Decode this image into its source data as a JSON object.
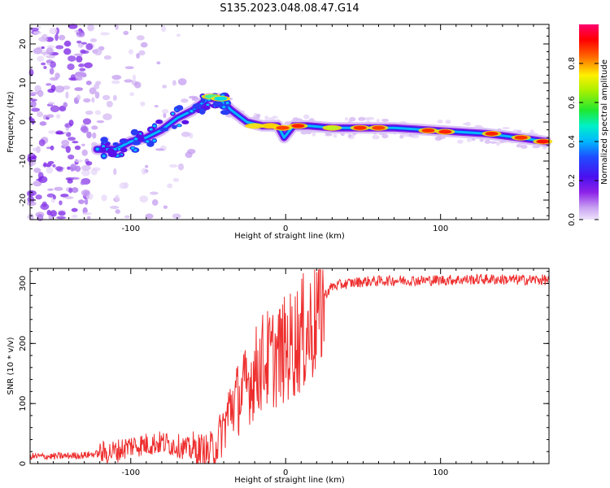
{
  "figure": {
    "title": "S135.2023.048.08.47.G14"
  },
  "chart_data": [
    {
      "type": "heatmap",
      "xlabel": "Height of straight line (km)",
      "ylabel": "Frequency (Hz)",
      "xlim": [
        -165,
        170
      ],
      "ylim": [
        -25,
        25
      ],
      "xticks": [
        "-100",
        "0",
        "100"
      ],
      "xtick_values": [
        -100,
        0,
        100
      ],
      "yticks": [
        "-20",
        "-10",
        "0",
        "10",
        "20"
      ],
      "ytick_values": [
        -20,
        -10,
        0,
        10,
        20
      ],
      "colorbar": {
        "label": "Normalized spectral amplitude",
        "range": [
          0,
          1
        ],
        "ticks": [
          "0.0",
          "0.2",
          "0.4",
          "0.6",
          "0.8"
        ],
        "tick_values": [
          0,
          0.2,
          0.4,
          0.6,
          0.8
        ],
        "colormap": "rainbow (lavender → purple → blue → cyan → green → yellow → red → magenta)"
      },
      "ridge": {
        "x": [
          -122,
          -110,
          -100,
          -90,
          -80,
          -70,
          -60,
          -50,
          -43,
          -35,
          -25,
          -15,
          -5,
          -1,
          5,
          15,
          30,
          50,
          70,
          90,
          110,
          130,
          150,
          168
        ],
        "y": [
          -7,
          -7,
          -5,
          -4,
          -2,
          1,
          3,
          6,
          6,
          3,
          0,
          -1,
          -1,
          -4,
          -1,
          -1,
          -1.5,
          -1.5,
          -1.5,
          -2,
          -2.5,
          -3,
          -4,
          -5
        ]
      }
    },
    {
      "type": "line",
      "xlabel": "Height of straight line (km)",
      "ylabel": "SNR (10 * v/v)",
      "xlim": [
        -165,
        170
      ],
      "ylim": [
        0,
        325
      ],
      "xticks": [
        "-100",
        "0",
        "100"
      ],
      "xtick_values": [
        -100,
        0,
        100
      ],
      "yticks": [
        "0",
        "100",
        "200",
        "300"
      ],
      "ytick_values": [
        0,
        100,
        200,
        300
      ],
      "color": "#ee2e2e",
      "series": [
        {
          "x": [
            -165,
            -150,
            -130,
            -110,
            -100,
            -90,
            -80,
            -70,
            -60,
            -50,
            -45,
            -40,
            -35,
            -30,
            -25,
            -20,
            -15,
            -10,
            -5,
            0,
            5,
            10,
            15,
            20,
            25,
            30,
            40,
            50,
            70,
            90,
            110,
            130,
            150,
            170
          ],
          "y": [
            12,
            12,
            14,
            20,
            30,
            32,
            35,
            30,
            22,
            18,
            30,
            60,
            100,
            110,
            130,
            150,
            170,
            175,
            180,
            190,
            200,
            215,
            220,
            250,
            280,
            295,
            300,
            303,
            305,
            305,
            306,
            307,
            306,
            306
          ]
        }
      ]
    }
  ]
}
